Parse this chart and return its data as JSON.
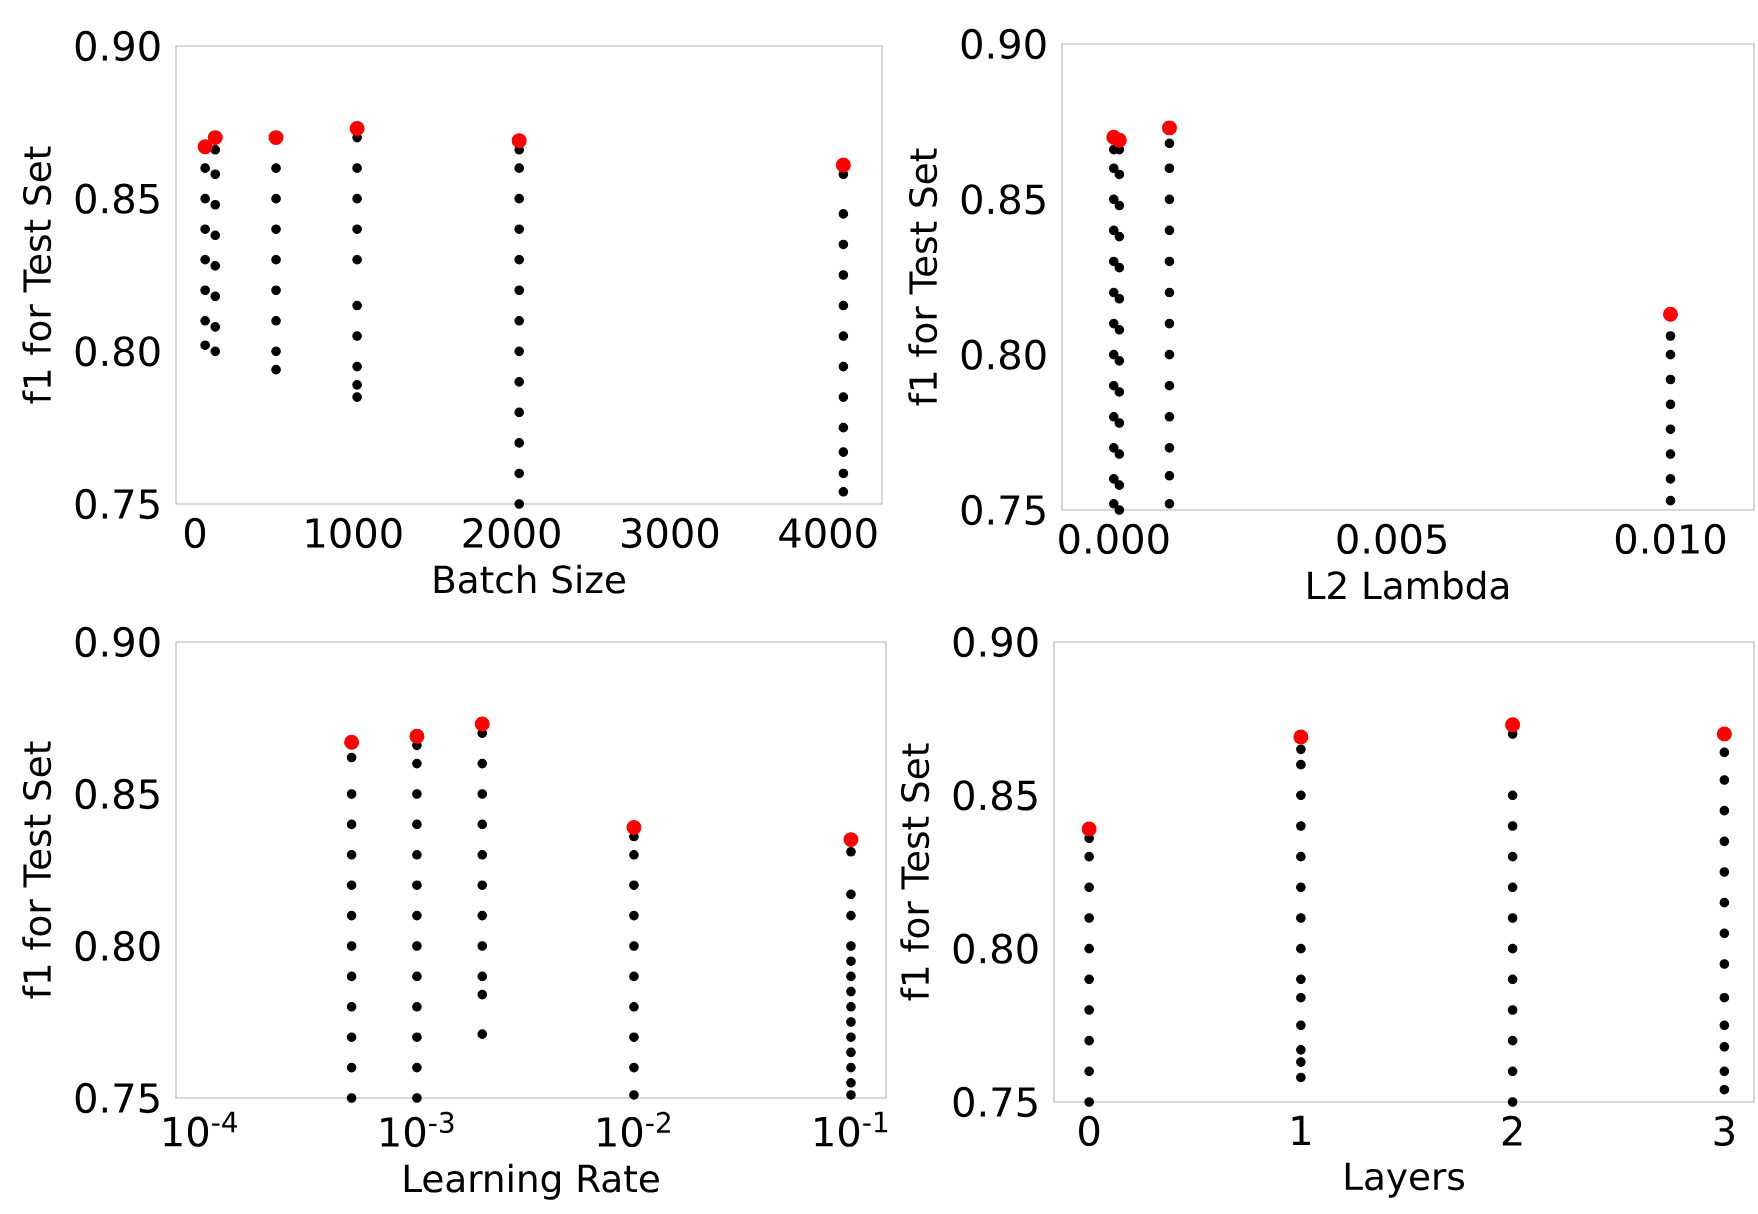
{
  "chart_data": [
    {
      "type": "scatter",
      "xlabel": "Batch Size",
      "ylabel": "f1 for Test Set",
      "xlim": [
        -120,
        4340
      ],
      "ylim": [
        0.75,
        0.9
      ],
      "xticks": [
        0,
        1000,
        2000,
        3000,
        4000
      ],
      "yticks": [
        {
          "value": 0.75,
          "label": "0.75"
        },
        {
          "value": 0.8,
          "label": "0.80"
        },
        {
          "value": 0.85,
          "label": "0.85"
        },
        {
          "value": 0.9,
          "label": "0.90"
        }
      ],
      "series": [
        {
          "color": "#000000",
          "x": [
            64,
            64,
            64,
            64,
            64,
            64,
            64,
            128,
            128,
            128,
            128,
            128,
            128,
            128,
            128,
            512,
            512,
            512,
            512,
            512,
            512,
            512,
            512,
            1024,
            1024,
            1024,
            1024,
            1024,
            1024,
            1024,
            1024,
            1024,
            1024,
            2048,
            2048,
            2048,
            2048,
            2048,
            2048,
            2048,
            2048,
            2048,
            2048,
            2048,
            2048,
            2048,
            4096,
            4096,
            4096,
            4096,
            4096,
            4096,
            4096,
            4096,
            4096,
            4096,
            4096,
            4096
          ],
          "values": [
            0.802,
            0.81,
            0.82,
            0.83,
            0.84,
            0.85,
            0.86,
            0.8,
            0.808,
            0.818,
            0.828,
            0.838,
            0.848,
            0.858,
            0.866,
            0.794,
            0.8,
            0.81,
            0.82,
            0.83,
            0.84,
            0.85,
            0.86,
            0.785,
            0.789,
            0.795,
            0.805,
            0.815,
            0.83,
            0.84,
            0.85,
            0.86,
            0.87,
            0.75,
            0.76,
            0.77,
            0.78,
            0.79,
            0.8,
            0.81,
            0.82,
            0.83,
            0.84,
            0.85,
            0.86,
            0.866,
            0.754,
            0.76,
            0.767,
            0.775,
            0.785,
            0.795,
            0.805,
            0.815,
            0.825,
            0.835,
            0.845,
            0.858
          ]
        },
        {
          "color": "#ff0000",
          "x": [
            64,
            128,
            512,
            1024,
            2048,
            4096
          ],
          "values": [
            0.867,
            0.87,
            0.87,
            0.873,
            0.869,
            0.861
          ]
        }
      ]
    },
    {
      "type": "scatter",
      "xlabel": "L2 Lambda",
      "ylabel": "f1 for Test Set",
      "xlim": [
        -0.00093,
        0.0115
      ],
      "ylim": [
        0.75,
        0.9
      ],
      "xticks": [
        {
          "value": 0,
          "label": "0.000"
        },
        {
          "value": 0.005,
          "label": "0.005"
        },
        {
          "value": 0.01,
          "label": "0.010"
        }
      ],
      "yticks": [
        {
          "value": 0.75,
          "label": "0.75"
        },
        {
          "value": 0.8,
          "label": "0.80"
        },
        {
          "value": 0.85,
          "label": "0.85"
        },
        {
          "value": 0.9,
          "label": "0.90"
        }
      ],
      "series": [
        {
          "color": "#000000",
          "x": [
            0,
            0,
            0,
            0,
            0,
            0,
            0,
            0,
            0,
            0,
            0,
            0,
            0,
            0.0001,
            0.0001,
            0.0001,
            0.0001,
            0.0001,
            0.0001,
            0.0001,
            0.0001,
            0.0001,
            0.0001,
            0.0001,
            0.0001,
            0.0001,
            0.001,
            0.001,
            0.001,
            0.001,
            0.001,
            0.001,
            0.001,
            0.001,
            0.001,
            0.001,
            0.001,
            0.001,
            0.001,
            0.01,
            0.01,
            0.01,
            0.01,
            0.01,
            0.01,
            0.01,
            0.01
          ],
          "values": [
            0.752,
            0.76,
            0.77,
            0.78,
            0.79,
            0.8,
            0.81,
            0.82,
            0.83,
            0.84,
            0.85,
            0.86,
            0.866,
            0.75,
            0.758,
            0.768,
            0.778,
            0.788,
            0.798,
            0.808,
            0.818,
            0.828,
            0.838,
            0.848,
            0.858,
            0.866,
            0.752,
            0.761,
            0.77,
            0.78,
            0.79,
            0.8,
            0.81,
            0.82,
            0.83,
            0.84,
            0.85,
            0.86,
            0.868,
            0.753,
            0.76,
            0.768,
            0.776,
            0.784,
            0.792,
            0.8,
            0.806
          ]
        },
        {
          "color": "#ff0000",
          "x": [
            0,
            0.0001,
            0.001,
            0.01
          ],
          "values": [
            0.87,
            0.869,
            0.873,
            0.813
          ]
        }
      ]
    },
    {
      "type": "scatter",
      "xlabel": "Learning Rate",
      "ylabel": "f1 for Test Set",
      "log": "x",
      "xlim": [
        7.76e-05,
        0.145
      ],
      "ylim": [
        0.75,
        0.9
      ],
      "xticks": [
        {
          "value": 0.0001,
          "label": "10$^{-4}$"
        },
        {
          "value": 0.001,
          "label": "10$^{-3}$"
        },
        {
          "value": 0.01,
          "label": "10$^{-2}$"
        },
        {
          "value": 0.1,
          "label": "10$^{-1}$"
        }
      ],
      "yticks": [
        {
          "value": 0.75,
          "label": "0.75"
        },
        {
          "value": 0.8,
          "label": "0.80"
        },
        {
          "value": 0.85,
          "label": "0.85"
        },
        {
          "value": 0.9,
          "label": "0.90"
        }
      ],
      "series": [
        {
          "color": "#000000",
          "x": [
            0.0005,
            0.0005,
            0.0005,
            0.0005,
            0.0005,
            0.0005,
            0.0005,
            0.0005,
            0.0005,
            0.0005,
            0.0005,
            0.0005,
            0.001,
            0.001,
            0.001,
            0.001,
            0.001,
            0.001,
            0.001,
            0.001,
            0.001,
            0.001,
            0.001,
            0.001,
            0.001,
            0.002,
            0.002,
            0.002,
            0.002,
            0.002,
            0.002,
            0.002,
            0.002,
            0.002,
            0.002,
            0.002,
            0.01,
            0.01,
            0.01,
            0.01,
            0.01,
            0.01,
            0.01,
            0.01,
            0.01,
            0.01,
            0.1,
            0.1,
            0.1,
            0.1,
            0.1,
            0.1,
            0.1,
            0.1,
            0.1,
            0.1,
            0.1,
            0.1,
            0.1,
            0.1
          ],
          "values": [
            0.75,
            0.76,
            0.77,
            0.78,
            0.79,
            0.8,
            0.81,
            0.82,
            0.83,
            0.84,
            0.85,
            0.862,
            0.75,
            0.76,
            0.77,
            0.78,
            0.79,
            0.8,
            0.81,
            0.82,
            0.83,
            0.84,
            0.85,
            0.86,
            0.866,
            0.771,
            0.784,
            0.79,
            0.8,
            0.81,
            0.82,
            0.83,
            0.84,
            0.85,
            0.86,
            0.87,
            0.751,
            0.76,
            0.77,
            0.78,
            0.79,
            0.8,
            0.81,
            0.82,
            0.83,
            0.836,
            0.751,
            0.755,
            0.76,
            0.765,
            0.77,
            0.775,
            0.78,
            0.785,
            0.79,
            0.795,
            0.8,
            0.81,
            0.817,
            0.831
          ]
        },
        {
          "color": "#ff0000",
          "x": [
            0.0005,
            0.001,
            0.002,
            0.01,
            0.1
          ],
          "values": [
            0.867,
            0.869,
            0.873,
            0.839,
            0.835
          ]
        }
      ]
    },
    {
      "type": "scatter",
      "xlabel": "Layers",
      "ylabel": "f1 for Test Set",
      "xlim": [
        -0.166,
        3.14
      ],
      "ylim": [
        0.75,
        0.9
      ],
      "xticks": [
        0,
        1,
        2,
        3
      ],
      "yticks": [
        {
          "value": 0.75,
          "label": "0.75"
        },
        {
          "value": 0.8,
          "label": "0.80"
        },
        {
          "value": 0.85,
          "label": "0.85"
        },
        {
          "value": 0.9,
          "label": "0.90"
        }
      ],
      "series": [
        {
          "color": "#000000",
          "x": [
            0,
            0,
            0,
            0,
            0,
            0,
            0,
            0,
            0,
            0,
            1,
            1,
            1,
            1,
            1,
            1,
            1,
            1,
            1,
            1,
            1,
            1,
            1,
            1,
            2,
            2,
            2,
            2,
            2,
            2,
            2,
            2,
            2,
            2,
            2,
            2,
            3,
            3,
            3,
            3,
            3,
            3,
            3,
            3,
            3,
            3,
            3,
            3,
            3
          ],
          "values": [
            0.75,
            0.76,
            0.77,
            0.78,
            0.79,
            0.8,
            0.81,
            0.82,
            0.83,
            0.836,
            0.758,
            0.763,
            0.767,
            0.775,
            0.784,
            0.79,
            0.8,
            0.81,
            0.82,
            0.83,
            0.84,
            0.85,
            0.86,
            0.865,
            0.75,
            0.76,
            0.77,
            0.78,
            0.79,
            0.8,
            0.81,
            0.82,
            0.83,
            0.84,
            0.85,
            0.87,
            0.754,
            0.76,
            0.768,
            0.775,
            0.784,
            0.795,
            0.805,
            0.815,
            0.825,
            0.835,
            0.845,
            0.855,
            0.864
          ]
        },
        {
          "color": "#ff0000",
          "x": [
            0,
            1,
            2,
            3
          ],
          "values": [
            0.839,
            0.869,
            0.873,
            0.87
          ]
        }
      ]
    }
  ]
}
